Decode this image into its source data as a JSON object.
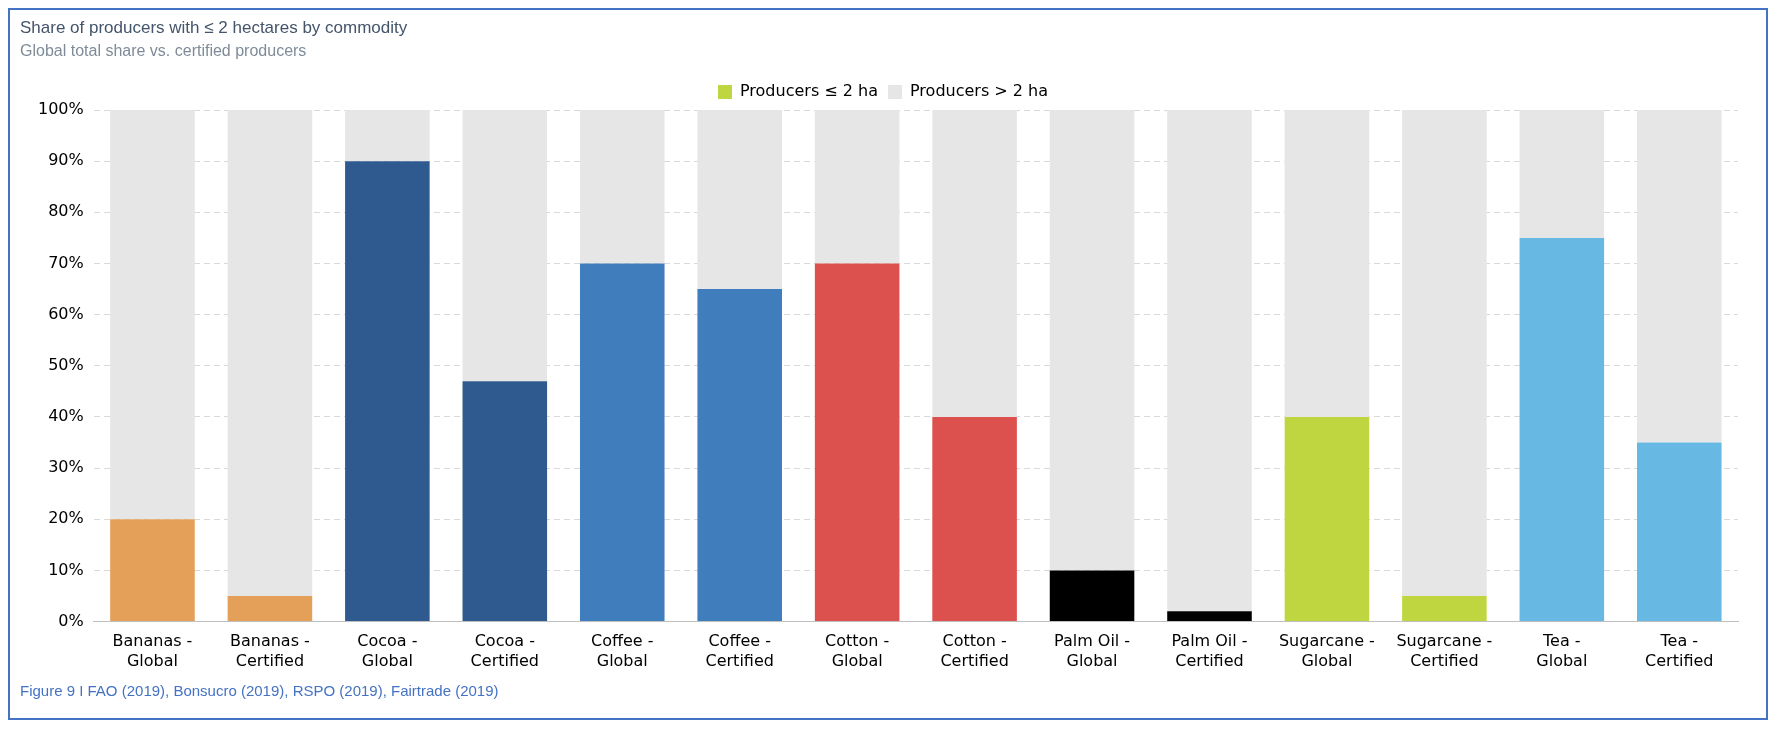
{
  "chart_data": {
    "type": "bar",
    "title": "Share of producers with ≤ 2 hectares by commodity",
    "subtitle": "Global total share vs. certified producers",
    "stacked": true,
    "categories": [
      "Bananas - Global",
      "Bananas - Certified",
      "Cocoa - Global",
      "Cocoa - Certified",
      "Coffee - Global",
      "Coffee - Certified",
      "Cotton - Global",
      "Cotton - Certified",
      "Palm Oil - Global",
      "Palm Oil - Certified",
      "Sugarcane - Global",
      "Sugarcane - Certified",
      "Tea - Global",
      "Tea - Certified"
    ],
    "series": [
      {
        "name": "Producers ≤ 2 ha",
        "color": "#bfd641",
        "colors": [
          "#e49f58",
          "#e49f58",
          "#2f5a8f",
          "#2f5a8f",
          "#3f7dbd",
          "#3f7dbd",
          "#dc504d",
          "#dc504d",
          "#000000",
          "#000000",
          "#bfd641",
          "#bfd641",
          "#67b9e3",
          "#67b9e3"
        ],
        "values": [
          20,
          5,
          90,
          47,
          70,
          65,
          70,
          40,
          10,
          2,
          40,
          5,
          75,
          35
        ]
      },
      {
        "name": "Producers > 2 ha",
        "color": "#e6e6e6",
        "values": [
          80,
          95,
          10,
          53,
          30,
          35,
          30,
          60,
          90,
          98,
          60,
          95,
          25,
          65
        ]
      }
    ],
    "ylim": [
      0,
      100
    ],
    "yticks": [
      {
        "value": 0,
        "label": "0%"
      },
      {
        "value": 10,
        "label": "10%"
      },
      {
        "value": 20,
        "label": "20%"
      },
      {
        "value": 30,
        "label": "30%"
      },
      {
        "value": 40,
        "label": "40%"
      },
      {
        "value": 50,
        "label": "50%"
      },
      {
        "value": 60,
        "label": "60%"
      },
      {
        "value": 70,
        "label": "70%"
      },
      {
        "value": 80,
        "label": "80%"
      },
      {
        "value": 90,
        "label": "90%"
      },
      {
        "value": 100,
        "label": "100%"
      }
    ],
    "grid": "y",
    "legend": "top",
    "annotations": [
      "Figure 9 I FAO (2019), Bonsucro (2019), RSPO (2019), Fairtrade (2019)"
    ]
  }
}
